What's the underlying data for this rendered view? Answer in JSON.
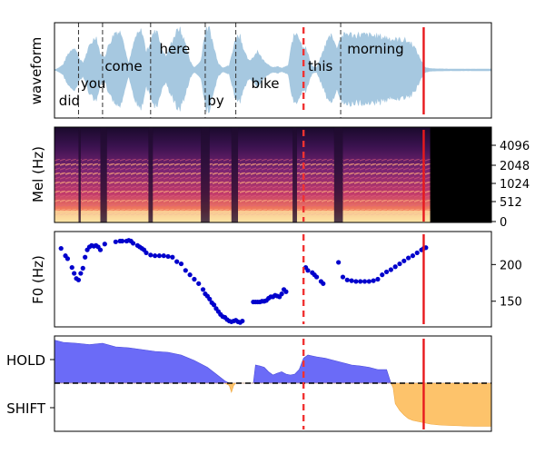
{
  "chart_data": [
    {
      "type": "area",
      "panel": "waveform",
      "ylabel": "waveform",
      "xlim": [
        0,
        1
      ],
      "fill_color": "#a6c8e0",
      "envelope_x": [
        0.0,
        0.01,
        0.02,
        0.03,
        0.045,
        0.055,
        0.065,
        0.08,
        0.095,
        0.105,
        0.115,
        0.125,
        0.14,
        0.155,
        0.165,
        0.17,
        0.185,
        0.2,
        0.21,
        0.225,
        0.235,
        0.245,
        0.255,
        0.27,
        0.285,
        0.3,
        0.31,
        0.32,
        0.335,
        0.345,
        0.355,
        0.365,
        0.375,
        0.385,
        0.4,
        0.415,
        0.425,
        0.435,
        0.445,
        0.455,
        0.465,
        0.475,
        0.49,
        0.5,
        0.51,
        0.52,
        0.535,
        0.545,
        0.555,
        0.565,
        0.575,
        0.59,
        0.6,
        0.61,
        0.625,
        0.635,
        0.645,
        0.655,
        0.67,
        0.685,
        0.7,
        0.72,
        0.74,
        0.76,
        0.78,
        0.8,
        0.82,
        0.83,
        0.84,
        0.845,
        0.85,
        0.86,
        0.9,
        1.0
      ],
      "envelope_y": [
        0.0,
        0.05,
        0.12,
        0.35,
        0.55,
        0.3,
        0.15,
        0.55,
        0.8,
        0.35,
        0.3,
        0.6,
        0.9,
        0.85,
        0.3,
        0.15,
        0.75,
        0.92,
        0.4,
        0.8,
        0.95,
        0.5,
        0.3,
        0.7,
        0.98,
        0.6,
        0.2,
        0.05,
        0.2,
        0.9,
        0.95,
        0.5,
        0.15,
        0.05,
        0.1,
        0.75,
        0.8,
        0.4,
        0.2,
        0.3,
        0.45,
        0.25,
        0.12,
        0.05,
        0.08,
        0.04,
        0.1,
        0.7,
        0.9,
        0.6,
        0.5,
        0.08,
        0.05,
        0.3,
        0.7,
        0.85,
        0.5,
        0.75,
        0.85,
        0.8,
        0.82,
        0.8,
        0.78,
        0.75,
        0.7,
        0.7,
        0.6,
        0.4,
        0.2,
        0.1,
        0.05,
        0.03,
        0.02,
        0.02
      ],
      "word_labels": [
        {
          "text": "did",
          "x": 0.01,
          "level": "low"
        },
        {
          "text": "you",
          "x": 0.06,
          "level": "midlow"
        },
        {
          "text": "come",
          "x": 0.115,
          "level": "mid"
        },
        {
          "text": "here",
          "x": 0.24,
          "level": "high"
        },
        {
          "text": "by",
          "x": 0.35,
          "level": "low"
        },
        {
          "text": "bike",
          "x": 0.45,
          "level": "midlow"
        },
        {
          "text": "this",
          "x": 0.58,
          "level": "mid"
        },
        {
          "text": "morning",
          "x": 0.67,
          "level": "high"
        }
      ],
      "word_boundaries": [
        0.055,
        0.11,
        0.22,
        0.345,
        0.415,
        0.655
      ],
      "markers": [
        {
          "x": 0.57,
          "style": "dashed",
          "color": "#f03232"
        },
        {
          "x": 0.845,
          "style": "solid",
          "color": "#e8191d"
        }
      ]
    },
    {
      "type": "heatmap",
      "panel": "spectrogram",
      "ylabel": "Mel (Hz)",
      "y_ticks": [
        "0",
        "512",
        "1024",
        "2048",
        "4096"
      ],
      "xlim": [
        0,
        1
      ],
      "signal_end_x": 0.86,
      "voiced_segments": [
        [
          0.0,
          0.055
        ],
        [
          0.06,
          0.105
        ],
        [
          0.12,
          0.215
        ],
        [
          0.225,
          0.335
        ],
        [
          0.355,
          0.405
        ],
        [
          0.42,
          0.545
        ],
        [
          0.555,
          0.64
        ],
        [
          0.66,
          0.86
        ]
      ],
      "markers": [
        {
          "x": 0.57,
          "style": "dashed",
          "color": "#f03232"
        },
        {
          "x": 0.845,
          "style": "solid",
          "color": "#e8191d"
        }
      ]
    },
    {
      "type": "scatter",
      "panel": "pitch",
      "ylabel": "F0 (Hz)",
      "y_ticks": [
        150,
        200
      ],
      "ylim": [
        115,
        245
      ],
      "xlim": [
        0,
        1
      ],
      "point_color": "#0000cc",
      "x": [
        0.015,
        0.025,
        0.03,
        0.04,
        0.045,
        0.05,
        0.055,
        0.06,
        0.065,
        0.07,
        0.075,
        0.08,
        0.085,
        0.09,
        0.095,
        0.1,
        0.105,
        0.115,
        0.14,
        0.15,
        0.155,
        0.165,
        0.17,
        0.175,
        0.18,
        0.19,
        0.195,
        0.2,
        0.205,
        0.21,
        0.22,
        0.23,
        0.24,
        0.25,
        0.26,
        0.27,
        0.28,
        0.29,
        0.3,
        0.31,
        0.32,
        0.33,
        0.34,
        0.345,
        0.35,
        0.355,
        0.36,
        0.365,
        0.37,
        0.375,
        0.38,
        0.385,
        0.39,
        0.395,
        0.4,
        0.405,
        0.41,
        0.415,
        0.42,
        0.425,
        0.43,
        0.455,
        0.46,
        0.465,
        0.47,
        0.475,
        0.48,
        0.485,
        0.49,
        0.495,
        0.5,
        0.505,
        0.51,
        0.515,
        0.52,
        0.525,
        0.53,
        0.575,
        0.58,
        0.59,
        0.595,
        0.6,
        0.61,
        0.615,
        0.65,
        0.66,
        0.67,
        0.68,
        0.69,
        0.7,
        0.71,
        0.72,
        0.73,
        0.74,
        0.75,
        0.76,
        0.77,
        0.78,
        0.79,
        0.8,
        0.81,
        0.82,
        0.83,
        0.84,
        0.845,
        0.85
      ],
      "y": [
        222,
        212,
        208,
        196,
        188,
        181,
        179,
        188,
        195,
        210,
        220,
        224,
        226,
        225,
        226,
        224,
        220,
        228,
        231,
        232,
        232,
        232,
        233,
        232,
        229,
        226,
        224,
        222,
        220,
        216,
        213,
        212,
        212,
        212,
        211,
        210,
        204,
        201,
        192,
        186,
        180,
        174,
        166,
        160,
        157,
        153,
        148,
        145,
        140,
        136,
        132,
        129,
        128,
        125,
        123,
        122,
        123,
        124,
        122,
        121,
        123,
        149,
        149,
        149,
        149,
        150,
        150,
        151,
        154,
        156,
        156,
        158,
        157,
        156,
        160,
        166,
        163,
        196,
        192,
        189,
        186,
        183,
        177,
        174,
        203,
        183,
        179,
        178,
        177,
        177,
        177,
        177,
        178,
        180,
        186,
        190,
        193,
        197,
        201,
        205,
        209,
        212,
        216,
        220,
        222,
        223
      ],
      "markers": [
        {
          "x": 0.57,
          "style": "dashed",
          "color": "#f03232"
        },
        {
          "x": 0.845,
          "style": "solid",
          "color": "#e8191d"
        }
      ]
    },
    {
      "type": "area",
      "panel": "turn-taking",
      "y_tick_labels": [
        "HOLD",
        "SHIFT"
      ],
      "ylim": [
        -1,
        1
      ],
      "baseline": 0,
      "xlim": [
        0,
        1
      ],
      "hold_color": "#6b6bf7",
      "shift_color": "#fdc36b",
      "x": [
        0.0,
        0.02,
        0.05,
        0.08,
        0.11,
        0.14,
        0.17,
        0.2,
        0.23,
        0.26,
        0.29,
        0.32,
        0.35,
        0.37,
        0.39,
        0.4,
        0.405,
        0.41,
        0.415,
        0.42,
        0.43,
        0.44,
        0.45,
        0.455,
        0.46,
        0.47,
        0.48,
        0.49,
        0.5,
        0.51,
        0.52,
        0.53,
        0.54,
        0.55,
        0.56,
        0.57,
        0.58,
        0.59,
        0.6,
        0.62,
        0.64,
        0.66,
        0.68,
        0.7,
        0.72,
        0.74,
        0.76,
        0.77,
        0.775,
        0.78,
        0.79,
        0.8,
        0.81,
        0.82,
        0.84,
        0.86,
        0.88,
        0.9,
        0.93,
        0.96,
        1.0
      ],
      "values": [
        0.95,
        0.9,
        0.88,
        0.85,
        0.88,
        0.8,
        0.78,
        0.74,
        0.7,
        0.68,
        0.62,
        0.5,
        0.35,
        0.2,
        0.05,
        -0.05,
        -0.2,
        -0.05,
        0.0,
        0.0,
        0.0,
        0.0,
        0.0,
        0.0,
        0.4,
        0.38,
        0.35,
        0.25,
        0.18,
        0.22,
        0.25,
        0.2,
        0.18,
        0.2,
        0.3,
        0.55,
        0.62,
        0.6,
        0.58,
        0.55,
        0.5,
        0.45,
        0.4,
        0.38,
        0.35,
        0.3,
        0.3,
        0.0,
        -0.1,
        -0.45,
        -0.6,
        -0.7,
        -0.78,
        -0.82,
        -0.86,
        -0.9,
        -0.92,
        -0.93,
        -0.94,
        -0.95,
        -0.95
      ],
      "markers": [
        {
          "x": 0.57,
          "style": "dashed",
          "color": "#f03232"
        },
        {
          "x": 0.845,
          "style": "solid",
          "color": "#e8191d"
        }
      ]
    }
  ]
}
